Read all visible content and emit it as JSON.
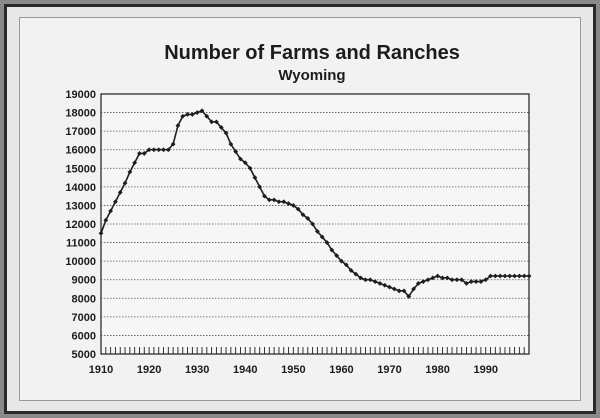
{
  "chart_data": {
    "type": "line",
    "title": "Number of Farms and Ranches",
    "subtitle": "Wyoming",
    "xlabel": "",
    "ylabel": "",
    "xlim": [
      1910,
      1999
    ],
    "ylim": [
      5000,
      19000
    ],
    "y_ticks": [
      5000,
      6000,
      7000,
      8000,
      9000,
      10000,
      11000,
      12000,
      13000,
      14000,
      15000,
      16000,
      17000,
      18000,
      19000
    ],
    "x_ticks": [
      1910,
      1920,
      1930,
      1940,
      1950,
      1960,
      1970,
      1980,
      1990
    ],
    "grid": "horizontal-dashed",
    "marker": "diamond",
    "line_color": "#1e1e1e",
    "series": [
      {
        "x": [
          1910,
          1911,
          1912,
          1913,
          1914,
          1915,
          1916,
          1917,
          1918,
          1919,
          1920,
          1921,
          1922,
          1923,
          1924,
          1925,
          1926,
          1927,
          1928,
          1929,
          1930,
          1931,
          1932,
          1933,
          1934,
          1935,
          1936,
          1937,
          1938,
          1939,
          1940,
          1941,
          1942,
          1943,
          1944,
          1945,
          1946,
          1947,
          1948,
          1949,
          1950,
          1951,
          1952,
          1953,
          1954,
          1955,
          1956,
          1957,
          1958,
          1959,
          1960,
          1961,
          1962,
          1963,
          1964,
          1965,
          1966,
          1967,
          1968,
          1969,
          1970,
          1971,
          1972,
          1973,
          1974,
          1975,
          1976,
          1977,
          1978,
          1979,
          1980,
          1981,
          1982,
          1983,
          1984,
          1985,
          1986,
          1987,
          1988,
          1989,
          1990,
          1991,
          1992,
          1993,
          1994,
          1995,
          1996,
          1997,
          1998,
          1999
        ],
        "values": [
          11500,
          12200,
          12700,
          13200,
          13700,
          14200,
          14800,
          15300,
          15800,
          15800,
          16000,
          16000,
          16000,
          16000,
          16000,
          16300,
          17300,
          17800,
          17900,
          17900,
          18000,
          18100,
          17800,
          17500,
          17500,
          17200,
          16900,
          16300,
          15900,
          15500,
          15300,
          15000,
          14500,
          14000,
          13500,
          13300,
          13300,
          13200,
          13200,
          13100,
          13000,
          12800,
          12500,
          12300,
          12000,
          11600,
          11300,
          11000,
          10600,
          10300,
          10000,
          9800,
          9500,
          9300,
          9100,
          9000,
          9000,
          8900,
          8800,
          8700,
          8600,
          8500,
          8400,
          8400,
          8100,
          8500,
          8800,
          8900,
          9000,
          9100,
          9200,
          9100,
          9100,
          9000,
          9000,
          9000,
          8800,
          8900,
          8900,
          8900,
          9000,
          9200,
          9200,
          9200,
          9200,
          9200,
          9200,
          9200,
          9200,
          9200
        ]
      }
    ]
  }
}
